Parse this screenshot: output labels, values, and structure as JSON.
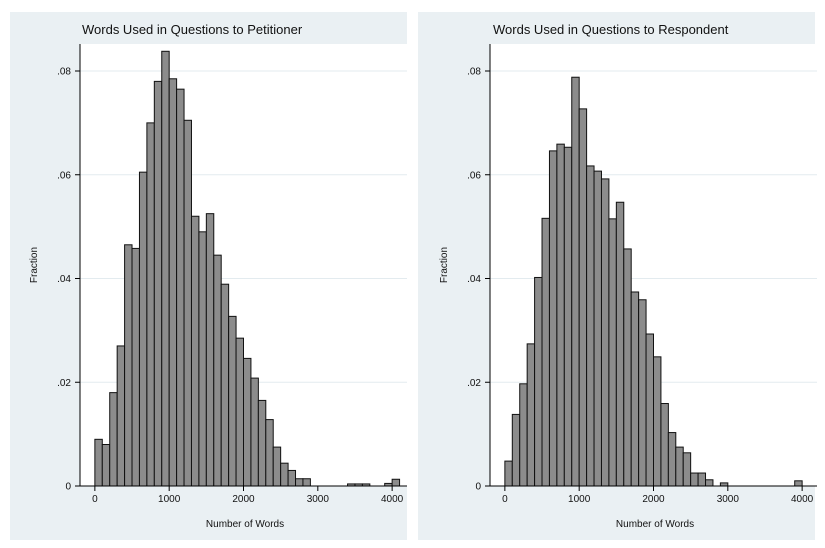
{
  "chart_data": [
    {
      "type": "bar",
      "title": "Words Used in Questions to Petitioner",
      "xlabel": "Number of Words",
      "ylabel": "Fraction",
      "xlim": [
        -200,
        4200
      ],
      "ylim": [
        0,
        0.08
      ],
      "xticks": [
        0,
        1000,
        2000,
        3000,
        4000
      ],
      "xtick_labels": [
        "0",
        "1000",
        "2000",
        "3000",
        "4000"
      ],
      "yticks": [
        0,
        0.02,
        0.04,
        0.06,
        0.08
      ],
      "ytick_labels": [
        "0",
        ".02",
        ".04",
        ".06",
        ".08"
      ],
      "grid": true,
      "bin_width": 100,
      "bins": [
        {
          "x": 0,
          "value": 0.009
        },
        {
          "x": 100,
          "value": 0.008
        },
        {
          "x": 200,
          "value": 0.018
        },
        {
          "x": 300,
          "value": 0.027
        },
        {
          "x": 400,
          "value": 0.0465
        },
        {
          "x": 500,
          "value": 0.0458
        },
        {
          "x": 600,
          "value": 0.0605
        },
        {
          "x": 700,
          "value": 0.07
        },
        {
          "x": 800,
          "value": 0.078
        },
        {
          "x": 900,
          "value": 0.0838
        },
        {
          "x": 1000,
          "value": 0.0785
        },
        {
          "x": 1100,
          "value": 0.0765
        },
        {
          "x": 1200,
          "value": 0.0705
        },
        {
          "x": 1300,
          "value": 0.052
        },
        {
          "x": 1400,
          "value": 0.049
        },
        {
          "x": 1500,
          "value": 0.0525
        },
        {
          "x": 1600,
          "value": 0.0445
        },
        {
          "x": 1700,
          "value": 0.0389
        },
        {
          "x": 1800,
          "value": 0.0327
        },
        {
          "x": 1900,
          "value": 0.0285
        },
        {
          "x": 2000,
          "value": 0.0246
        },
        {
          "x": 2100,
          "value": 0.0208
        },
        {
          "x": 2200,
          "value": 0.0165
        },
        {
          "x": 2300,
          "value": 0.0128
        },
        {
          "x": 2400,
          "value": 0.0075
        },
        {
          "x": 2500,
          "value": 0.0044
        },
        {
          "x": 2600,
          "value": 0.003
        },
        {
          "x": 2700,
          "value": 0.0014
        },
        {
          "x": 2800,
          "value": 0.0014
        },
        {
          "x": 3400,
          "value": 0.0004
        },
        {
          "x": 3500,
          "value": 0.0004
        },
        {
          "x": 3600,
          "value": 0.0004
        },
        {
          "x": 3900,
          "value": 0.0005
        },
        {
          "x": 4000,
          "value": 0.0013
        }
      ]
    },
    {
      "type": "bar",
      "title": "Words Used in Questions to Respondent",
      "xlabel": "Number of Words",
      "ylabel": "Fraction",
      "xlim": [
        -200,
        4200
      ],
      "ylim": [
        0,
        0.08
      ],
      "xticks": [
        0,
        1000,
        2000,
        3000,
        4000
      ],
      "xtick_labels": [
        "0",
        "1000",
        "2000",
        "3000",
        "4000"
      ],
      "yticks": [
        0,
        0.02,
        0.04,
        0.06,
        0.08
      ],
      "ytick_labels": [
        "0",
        ".02",
        ".04",
        ".06",
        ".08"
      ],
      "grid": true,
      "bin_width": 100,
      "bins": [
        {
          "x": 0,
          "value": 0.0048
        },
        {
          "x": 100,
          "value": 0.0138
        },
        {
          "x": 200,
          "value": 0.0197
        },
        {
          "x": 300,
          "value": 0.0274
        },
        {
          "x": 400,
          "value": 0.0402
        },
        {
          "x": 500,
          "value": 0.0516
        },
        {
          "x": 600,
          "value": 0.0646
        },
        {
          "x": 700,
          "value": 0.0659
        },
        {
          "x": 800,
          "value": 0.0653
        },
        {
          "x": 900,
          "value": 0.0788
        },
        {
          "x": 1000,
          "value": 0.0727
        },
        {
          "x": 1100,
          "value": 0.0617
        },
        {
          "x": 1200,
          "value": 0.0607
        },
        {
          "x": 1300,
          "value": 0.0592
        },
        {
          "x": 1400,
          "value": 0.0515
        },
        {
          "x": 1500,
          "value": 0.0547
        },
        {
          "x": 1600,
          "value": 0.0457
        },
        {
          "x": 1700,
          "value": 0.0374
        },
        {
          "x": 1800,
          "value": 0.0359
        },
        {
          "x": 1900,
          "value": 0.0293
        },
        {
          "x": 2000,
          "value": 0.0249
        },
        {
          "x": 2100,
          "value": 0.0159
        },
        {
          "x": 2200,
          "value": 0.0103
        },
        {
          "x": 2300,
          "value": 0.0075
        },
        {
          "x": 2400,
          "value": 0.0064
        },
        {
          "x": 2500,
          "value": 0.0025
        },
        {
          "x": 2600,
          "value": 0.0025
        },
        {
          "x": 2700,
          "value": 0.0012
        },
        {
          "x": 2900,
          "value": 0.0006
        },
        {
          "x": 3900,
          "value": 0.001
        }
      ]
    }
  ]
}
